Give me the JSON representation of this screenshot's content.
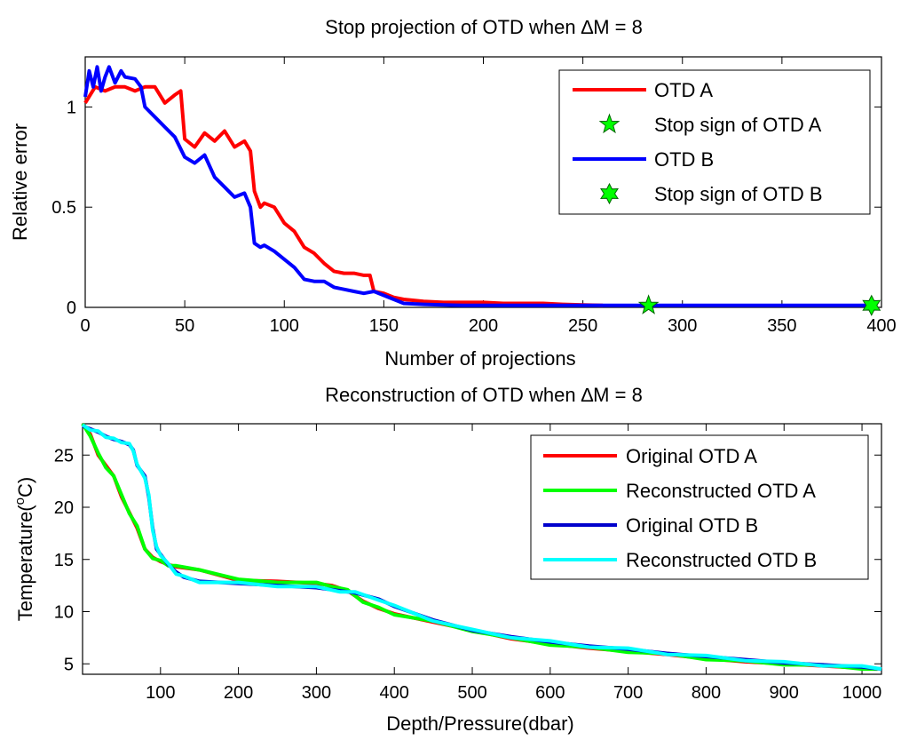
{
  "chart_data": [
    {
      "type": "line",
      "title": "Stop projection of OTD when ∆M = 8",
      "xlabel": "Number of projections",
      "ylabel": "Relative error",
      "xlim": [
        0,
        400
      ],
      "ylim": [
        0,
        1.25
      ],
      "xticks": [
        0,
        50,
        100,
        150,
        200,
        250,
        300,
        350,
        400
      ],
      "xtick_labels": [
        "0",
        "50",
        "100",
        "150",
        "200",
        "250",
        "300",
        "350",
        "400"
      ],
      "yticks": [
        0,
        0.5,
        1
      ],
      "ytick_labels": [
        "0",
        "0.5",
        "1"
      ],
      "grid": false,
      "legend_position": "top-right",
      "legend": [
        "OTD A",
        "Stop sign of OTD A",
        "OTD B",
        "Stop sign of OTD B"
      ],
      "series": [
        {
          "name": "OTD A",
          "color": "#ff0000",
          "x": [
            0,
            5,
            10,
            15,
            20,
            25,
            30,
            35,
            40,
            45,
            48,
            50,
            55,
            60,
            65,
            70,
            75,
            80,
            83,
            85,
            88,
            90,
            95,
            100,
            105,
            110,
            115,
            120,
            125,
            130,
            135,
            140,
            143,
            145,
            150,
            155,
            160,
            170,
            180,
            190,
            200,
            210,
            220,
            230,
            240,
            250,
            260
          ],
          "y": [
            1.02,
            1.1,
            1.08,
            1.1,
            1.1,
            1.08,
            1.1,
            1.1,
            1.02,
            1.06,
            1.08,
            0.84,
            0.8,
            0.87,
            0.83,
            0.88,
            0.8,
            0.83,
            0.78,
            0.58,
            0.5,
            0.52,
            0.5,
            0.42,
            0.38,
            0.3,
            0.27,
            0.22,
            0.18,
            0.17,
            0.17,
            0.16,
            0.16,
            0.08,
            0.07,
            0.05,
            0.04,
            0.03,
            0.025,
            0.025,
            0.025,
            0.02,
            0.02,
            0.02,
            0.015,
            0.012,
            0.01
          ]
        },
        {
          "name": "OTD B",
          "color": "#0000ff",
          "x": [
            0,
            2,
            4,
            6,
            8,
            10,
            12,
            15,
            18,
            20,
            25,
            28,
            30,
            35,
            40,
            45,
            50,
            55,
            60,
            65,
            70,
            75,
            80,
            83,
            85,
            88,
            90,
            95,
            100,
            105,
            110,
            115,
            120,
            125,
            130,
            135,
            140,
            145,
            150,
            155,
            160,
            170,
            180,
            190,
            200,
            220,
            250,
            300,
            350,
            395
          ],
          "y": [
            1.05,
            1.18,
            1.1,
            1.2,
            1.08,
            1.15,
            1.2,
            1.12,
            1.18,
            1.15,
            1.14,
            1.1,
            1.0,
            0.95,
            0.9,
            0.85,
            0.75,
            0.72,
            0.76,
            0.65,
            0.6,
            0.55,
            0.57,
            0.5,
            0.32,
            0.3,
            0.31,
            0.28,
            0.24,
            0.2,
            0.14,
            0.13,
            0.13,
            0.1,
            0.09,
            0.08,
            0.07,
            0.08,
            0.06,
            0.04,
            0.02,
            0.015,
            0.012,
            0.01,
            0.01,
            0.01,
            0.01,
            0.01,
            0.01,
            0.01
          ]
        }
      ],
      "markers": [
        {
          "name": "Stop sign of OTD A",
          "x": 283,
          "y": 0.01,
          "shape": "pentagram",
          "color": "#00ff00"
        },
        {
          "name": "Stop sign of OTD B",
          "x": 395,
          "y": 0.01,
          "shape": "hexagram",
          "color": "#00ff00"
        }
      ]
    },
    {
      "type": "line",
      "title": "Reconstruction of OTD when ∆M = 8",
      "xlabel": "Depth/Pressure(dbar)",
      "ylabel_main": "Temperature(",
      "ylabel_sup": "o",
      "ylabel_tail": "C)",
      "xlim": [
        0,
        1025
      ],
      "ylim": [
        4,
        28
      ],
      "xticks": [
        100,
        200,
        300,
        400,
        500,
        600,
        700,
        800,
        900,
        1000
      ],
      "xtick_labels": [
        "100",
        "200",
        "300",
        "400",
        "500",
        "600",
        "700",
        "800",
        "900",
        "1000"
      ],
      "yticks": [
        5,
        10,
        15,
        20,
        25
      ],
      "ytick_labels": [
        "5",
        "10",
        "15",
        "20",
        "25"
      ],
      "grid": false,
      "legend_position": "top-right",
      "legend": [
        "Original OTD A",
        "Reconstructed OTD A",
        "Original OTD B",
        "Reconstructed OTD B"
      ],
      "series": [
        {
          "name": "Original OTD A",
          "color": "#ff0000",
          "x": [
            0,
            10,
            20,
            30,
            40,
            50,
            60,
            70,
            80,
            90,
            100,
            110,
            120,
            150,
            200,
            250,
            300,
            320,
            340,
            360,
            380,
            400,
            450,
            500,
            550,
            600,
            650,
            700,
            750,
            800,
            850,
            900,
            950,
            1000,
            1020
          ],
          "y": [
            28,
            27,
            25,
            24,
            23,
            21,
            19.5,
            18,
            16,
            15.2,
            14.8,
            14.5,
            14.3,
            14,
            13,
            12.9,
            12.7,
            12.5,
            12,
            11,
            10.3,
            9.8,
            9,
            8.2,
            7.4,
            6.9,
            6.5,
            6.2,
            5.9,
            5.5,
            5.2,
            5.0,
            4.8,
            4.6,
            4.5
          ]
        },
        {
          "name": "Reconstructed OTD A",
          "color": "#00ff00",
          "x": [
            0,
            10,
            20,
            30,
            40,
            50,
            60,
            70,
            80,
            90,
            100,
            110,
            120,
            150,
            200,
            250,
            300,
            320,
            340,
            360,
            380,
            400,
            450,
            500,
            550,
            600,
            650,
            700,
            750,
            800,
            850,
            900,
            950,
            1000,
            1020
          ],
          "y": [
            28,
            26.8,
            25.2,
            23.8,
            23,
            21.2,
            19.4,
            18.2,
            16,
            15.1,
            14.9,
            14.4,
            14.4,
            14,
            13.1,
            12.8,
            12.8,
            12.4,
            12.1,
            10.9,
            10.4,
            9.7,
            9.1,
            8.1,
            7.5,
            6.8,
            6.6,
            6.1,
            6.0,
            5.4,
            5.3,
            4.9,
            4.9,
            4.5,
            4.5
          ]
        },
        {
          "name": "Original OTD B",
          "color": "#0000cc",
          "x": [
            0,
            10,
            20,
            30,
            40,
            50,
            60,
            65,
            70,
            80,
            85,
            90,
            95,
            100,
            110,
            120,
            130,
            150,
            200,
            250,
            300,
            330,
            350,
            380,
            400,
            450,
            500,
            550,
            600,
            650,
            700,
            750,
            800,
            850,
            900,
            950,
            1000,
            1025
          ],
          "y": [
            27.8,
            27.5,
            27.2,
            26.8,
            26.5,
            26.3,
            26,
            25.5,
            24,
            23,
            21,
            18,
            16,
            15.5,
            14.5,
            13.8,
            13.3,
            12.9,
            12.7,
            12.5,
            12.3,
            12,
            11.8,
            11.2,
            10.5,
            9.2,
            8.2,
            7.6,
            7.1,
            6.7,
            6.4,
            6.0,
            5.7,
            5.4,
            5.1,
            4.9,
            4.7,
            4.5
          ]
        },
        {
          "name": "Reconstructed OTD B",
          "color": "#00ffff",
          "x": [
            0,
            10,
            20,
            30,
            40,
            50,
            60,
            65,
            70,
            80,
            85,
            90,
            95,
            100,
            110,
            120,
            130,
            150,
            200,
            250,
            300,
            330,
            350,
            380,
            400,
            450,
            500,
            550,
            600,
            650,
            700,
            750,
            800,
            850,
            900,
            950,
            1000,
            1025
          ],
          "y": [
            27.9,
            27.4,
            27.3,
            26.7,
            26.6,
            26.2,
            26.1,
            25.4,
            24.1,
            22.8,
            21.2,
            17.8,
            16.2,
            15.4,
            14.6,
            13.6,
            13.4,
            12.8,
            12.8,
            12.4,
            12.4,
            11.9,
            11.9,
            11.1,
            10.6,
            9.1,
            8.3,
            7.5,
            7.2,
            6.6,
            6.5,
            5.9,
            5.8,
            5.3,
            5.2,
            4.8,
            4.8,
            4.5
          ]
        }
      ]
    }
  ]
}
